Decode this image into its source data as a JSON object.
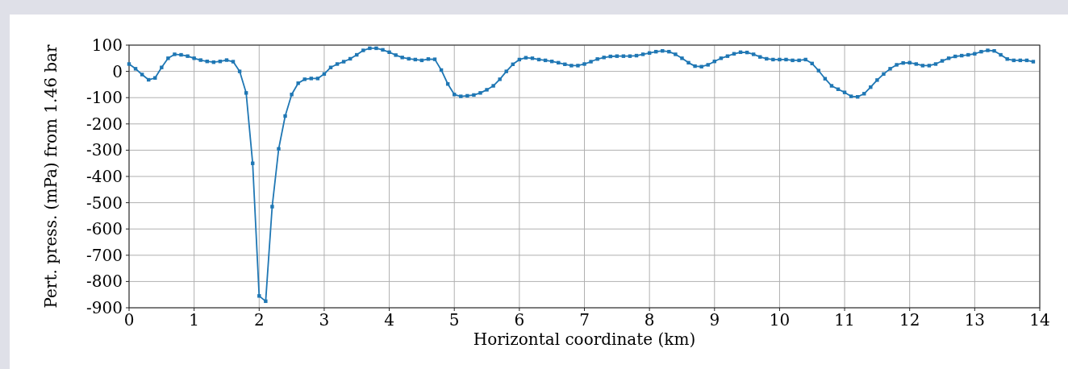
{
  "chart_data": {
    "type": "line",
    "xlabel": "Horizontal coordinate (km)",
    "ylabel": "Pert. press. (mPa) from 1.46 bar",
    "x": [
      0,
      0.1,
      0.2,
      0.3,
      0.4,
      0.5,
      0.6,
      0.7,
      0.8,
      0.9,
      1,
      1.1,
      1.2,
      1.3,
      1.4,
      1.5,
      1.6,
      1.7,
      1.8,
      1.9,
      2,
      2.1,
      2.2,
      2.3,
      2.4,
      2.5,
      2.6,
      2.7,
      2.8,
      2.9,
      3,
      3.1,
      3.2,
      3.3,
      3.4,
      3.5,
      3.6,
      3.7,
      3.8,
      3.9,
      4,
      4.1,
      4.2,
      4.3,
      4.4,
      4.5,
      4.6,
      4.7,
      4.8,
      4.9,
      5,
      5.1,
      5.2,
      5.3,
      5.4,
      5.5,
      5.6,
      5.7,
      5.8,
      5.9,
      6,
      6.1,
      6.2,
      6.3,
      6.4,
      6.5,
      6.6,
      6.7,
      6.8,
      6.9,
      7,
      7.1,
      7.2,
      7.3,
      7.4,
      7.5,
      7.6,
      7.7,
      7.8,
      7.9,
      8,
      8.1,
      8.2,
      8.3,
      8.4,
      8.5,
      8.6,
      8.7,
      8.8,
      8.9,
      9,
      9.1,
      9.2,
      9.3,
      9.4,
      9.5,
      9.6,
      9.7,
      9.8,
      9.9,
      10,
      10.1,
      10.2,
      10.3,
      10.4,
      10.5,
      10.6,
      10.7,
      10.8,
      10.9,
      11,
      11.1,
      11.2,
      11.3,
      11.4,
      11.5,
      11.6,
      11.7,
      11.8,
      11.9,
      12,
      12.1,
      12.2,
      12.3,
      12.4,
      12.5,
      12.6,
      12.7,
      12.8,
      12.9,
      13,
      13.1,
      13.2,
      13.3,
      13.4,
      13.5,
      13.6,
      13.7,
      13.8,
      13.9
    ],
    "series": [
      {
        "color": "#1f77b4",
        "values": [
          28,
          10,
          -12,
          -32,
          -25,
          15,
          50,
          65,
          63,
          58,
          50,
          43,
          38,
          35,
          38,
          43,
          37,
          0,
          -82,
          -350,
          -855,
          -875,
          -515,
          -295,
          -170,
          -88,
          -45,
          -30,
          -27,
          -27,
          -10,
          15,
          28,
          37,
          48,
          63,
          80,
          88,
          88,
          82,
          73,
          62,
          53,
          48,
          45,
          42,
          47,
          46,
          5,
          -48,
          -88,
          -95,
          -93,
          -90,
          -82,
          -70,
          -55,
          -30,
          0,
          27,
          45,
          52,
          50,
          45,
          42,
          38,
          33,
          27,
          22,
          22,
          28,
          37,
          47,
          53,
          57,
          58,
          58,
          58,
          60,
          65,
          70,
          75,
          78,
          75,
          65,
          50,
          33,
          20,
          18,
          25,
          38,
          50,
          58,
          67,
          73,
          72,
          65,
          55,
          48,
          45,
          45,
          45,
          42,
          42,
          45,
          30,
          3,
          -28,
          -55,
          -68,
          -80,
          -95,
          -97,
          -85,
          -60,
          -33,
          -10,
          10,
          25,
          32,
          33,
          28,
          22,
          22,
          28,
          40,
          50,
          57,
          60,
          63,
          67,
          75,
          80,
          78,
          63,
          47,
          42,
          42,
          42,
          37
        ]
      }
    ],
    "xlim": [
      0,
      14
    ],
    "ylim": [
      -900,
      100
    ],
    "xticks": [
      0,
      1,
      2,
      3,
      4,
      5,
      6,
      7,
      8,
      9,
      10,
      11,
      12,
      13,
      14
    ],
    "yticks": [
      -900,
      -800,
      -700,
      -600,
      -500,
      -400,
      -300,
      -200,
      -100,
      0,
      100
    ],
    "grid": true,
    "marker": "square",
    "line_style": "solid"
  }
}
